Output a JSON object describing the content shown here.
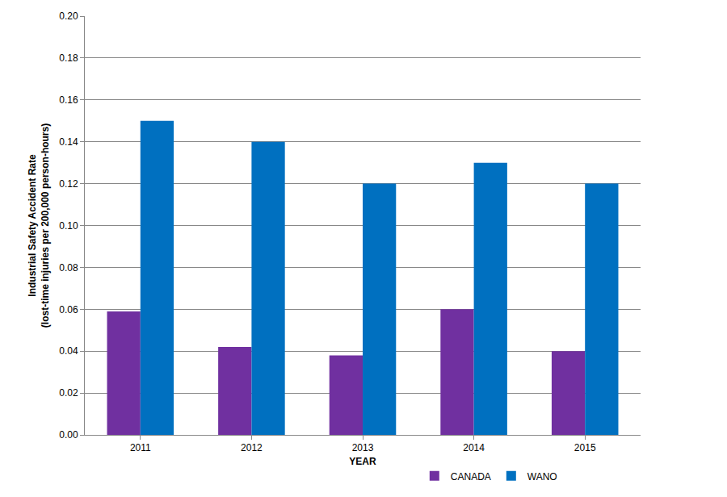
{
  "chart_data": {
    "type": "bar",
    "x_label": "YEAR",
    "y_label": "Industrial Safety Accident Rate\n(lost-time injuries per 200,000 person-hours)",
    "categories": [
      "2011",
      "2012",
      "2013",
      "2014",
      "2015"
    ],
    "series": [
      {
        "name": "CANADA",
        "color": "#7030a0",
        "values": [
          0.059,
          0.042,
          0.038,
          0.06,
          0.04
        ]
      },
      {
        "name": "WANO",
        "color": "#0070c0",
        "values": [
          0.15,
          0.14,
          0.12,
          0.13,
          0.12
        ]
      }
    ],
    "ylim": [
      0,
      0.2
    ],
    "yticks": [
      {
        "value": 0,
        "label": "0.00"
      },
      {
        "value": 0.02,
        "label": "0.02"
      },
      {
        "value": 0.04,
        "label": "0.04"
      },
      {
        "value": 0.06,
        "label": "0.06"
      },
      {
        "value": 0.08,
        "label": "0.08"
      },
      {
        "value": 0.1,
        "label": "0.10"
      },
      {
        "value": 0.12,
        "label": "0.12"
      },
      {
        "value": 0.14,
        "label": "0.14"
      },
      {
        "value": 0.16,
        "label": "0.16"
      },
      {
        "value": 0.18,
        "label": "0.18"
      },
      {
        "value": 0.2,
        "label": "0.20"
      }
    ],
    "grid": true,
    "legend": "bottom"
  }
}
